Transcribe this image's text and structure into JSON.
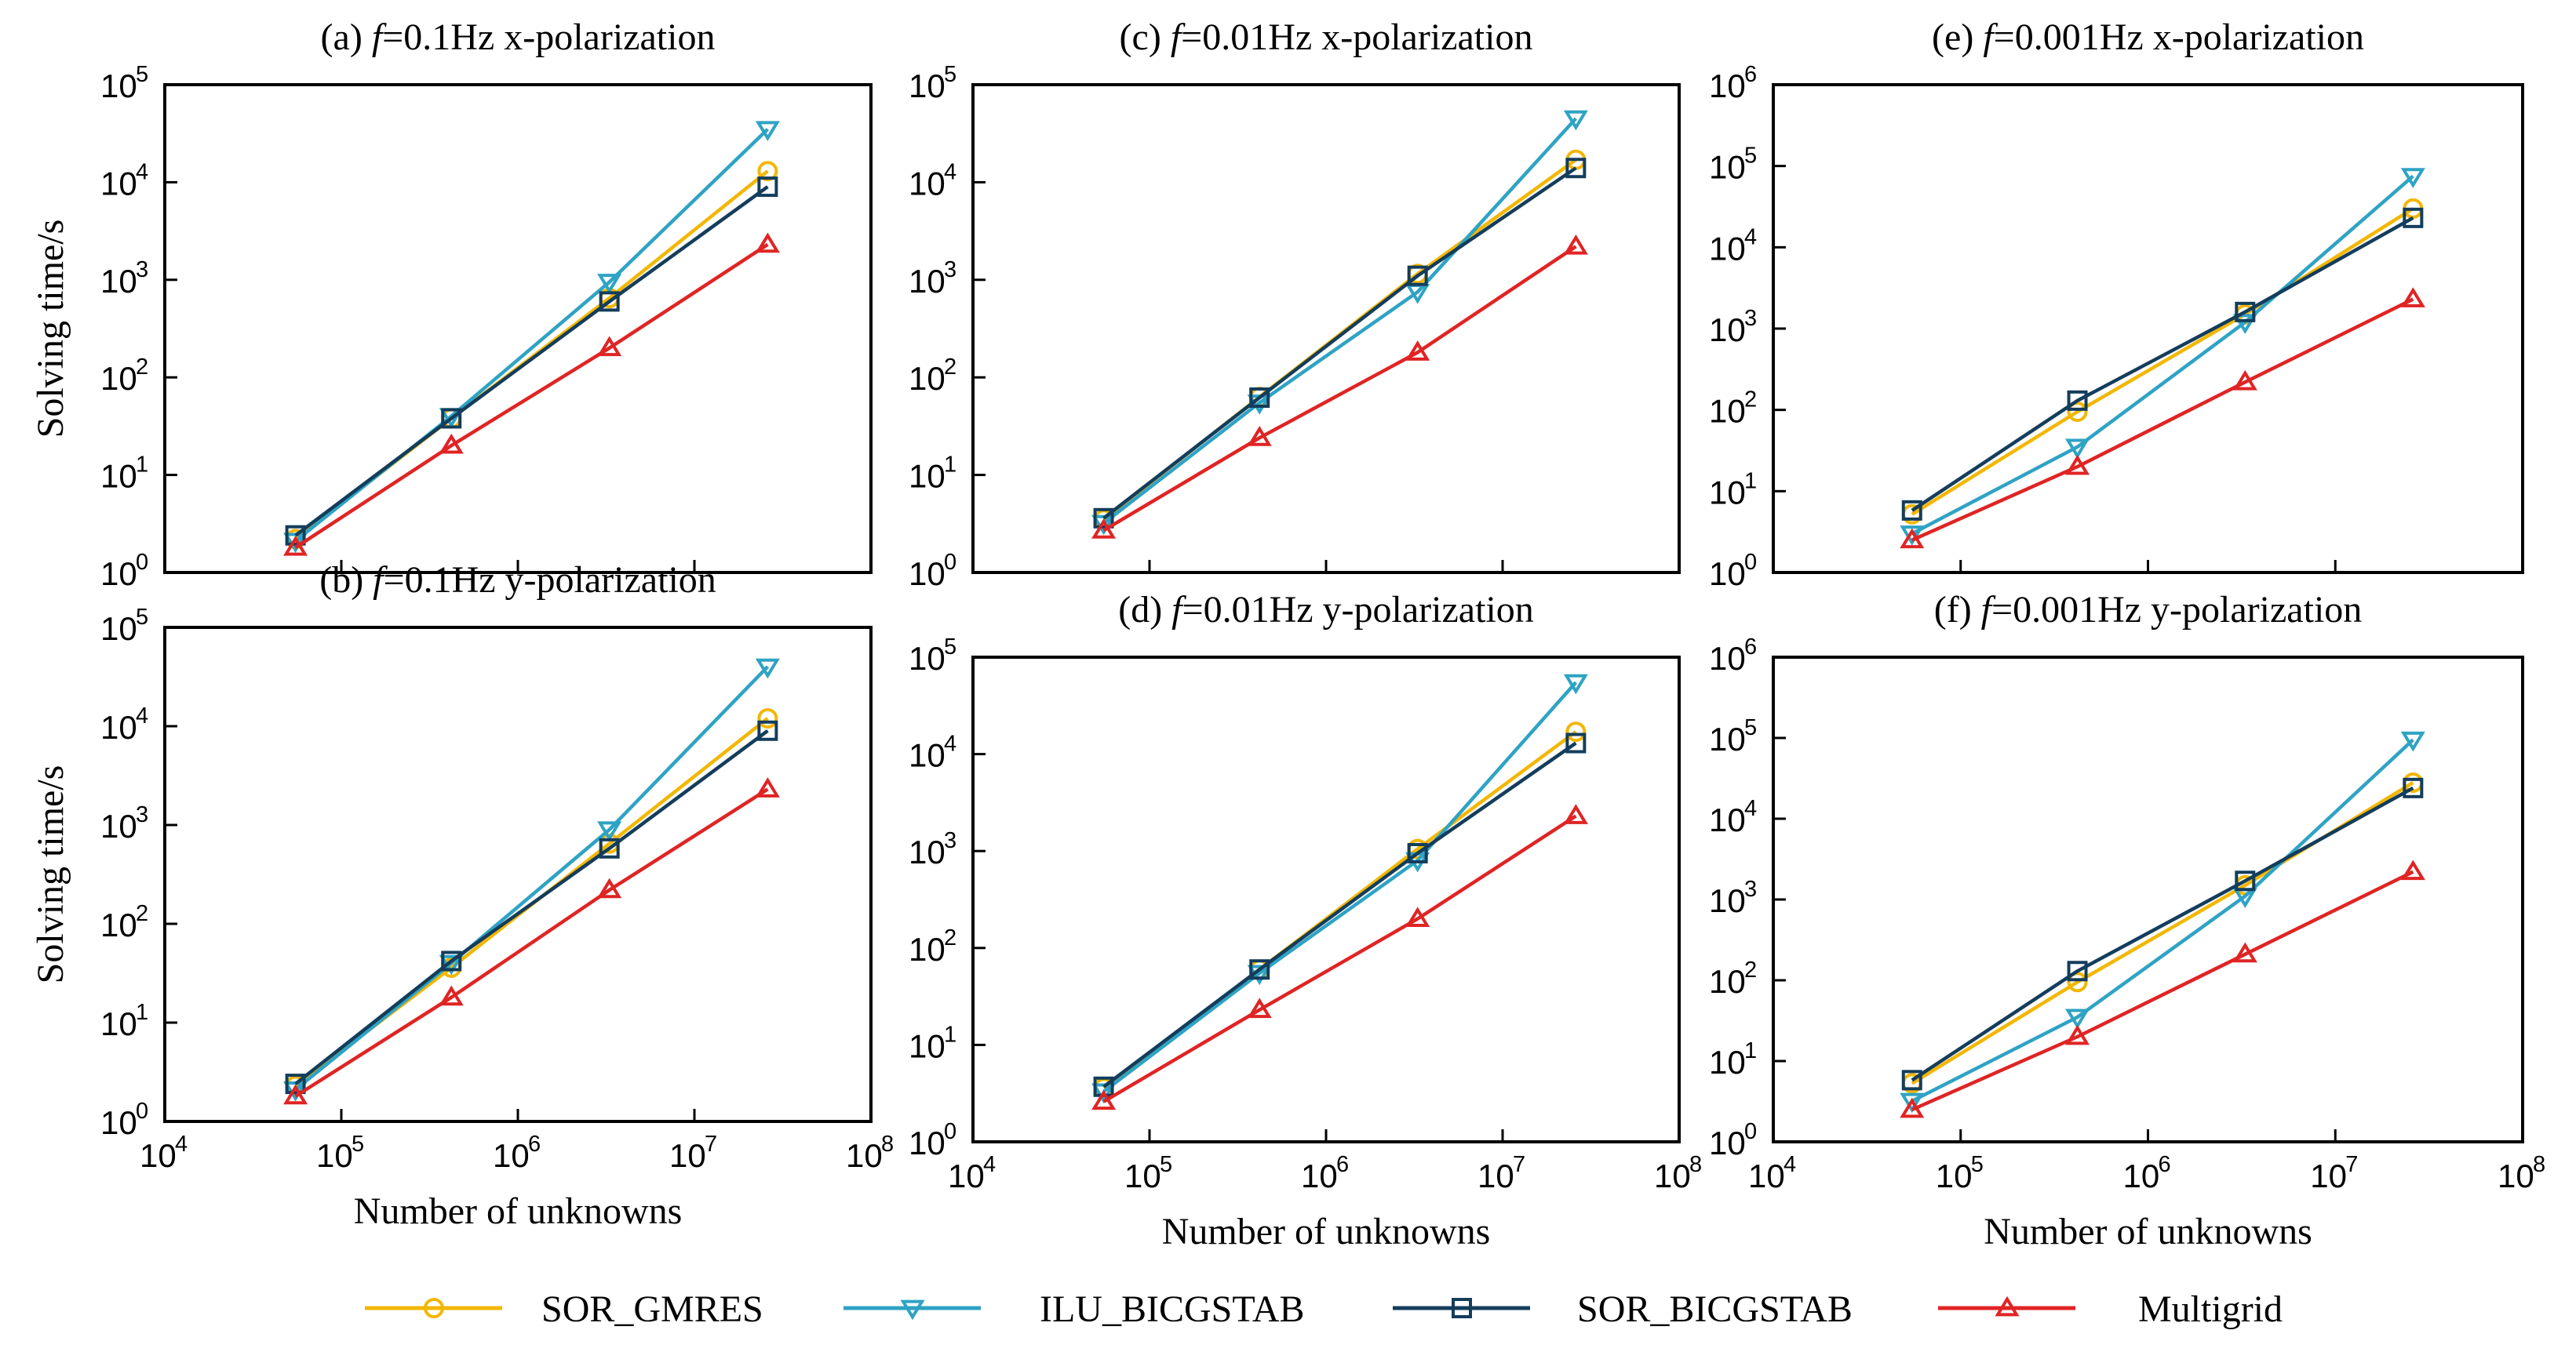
{
  "colors": {
    "SOR_GMRES": "#F2B705",
    "ILU_BICGSTAB": "#2FA3C4",
    "SOR_BICGSTAB": "#143D5C",
    "Multigrid": "#E02424"
  },
  "legend": {
    "placement": "bottom-center",
    "entries": [
      {
        "key": "SOR_GMRES",
        "label": "SOR_GMRES",
        "marker": "circle"
      },
      {
        "key": "ILU_BICGSTAB",
        "label": "ILU_BICGSTAB",
        "marker": "triangle-down"
      },
      {
        "key": "SOR_BICGSTAB",
        "label": "SOR_BICGSTAB",
        "marker": "square"
      },
      {
        "key": "Multigrid",
        "label": "Multigrid",
        "marker": "triangle-up"
      }
    ]
  },
  "chart_data": [
    {
      "id": "a",
      "type": "line",
      "title": {
        "prefix": "(a) ",
        "italic": "f",
        "rest": "=0.1Hz x-polarization"
      },
      "xlabel": "",
      "ylabel": "Solving time/s",
      "xscale": "log",
      "yscale": "log",
      "xlim_exp": [
        4,
        8
      ],
      "ylim_exp": [
        0,
        5
      ],
      "x_tick_labels_shown": false,
      "y_tick_labels_shown": true,
      "x": [
        55000,
        420000,
        3300000,
        26000000
      ],
      "series": [
        {
          "key": "SOR_GMRES",
          "name": "SOR_GMRES",
          "values": [
            2.2,
            38,
            650,
            13000
          ]
        },
        {
          "key": "ILU_BICGSTAB",
          "name": "ILU_BICGSTAB",
          "values": [
            2.1,
            40,
            950,
            35000
          ]
        },
        {
          "key": "SOR_BICGSTAB",
          "name": "SOR_BICGSTAB",
          "values": [
            2.4,
            38,
            600,
            9000
          ]
        },
        {
          "key": "Multigrid",
          "name": "Multigrid",
          "values": [
            1.8,
            20,
            200,
            2300
          ]
        }
      ]
    },
    {
      "id": "b",
      "type": "line",
      "title": {
        "prefix": "(b) ",
        "italic": "f",
        "rest": "=0.1Hz y-polarization"
      },
      "xlabel": "Number of unknowns",
      "ylabel": "Solving time/s",
      "xscale": "log",
      "yscale": "log",
      "xlim_exp": [
        4,
        8
      ],
      "ylim_exp": [
        0,
        5
      ],
      "x_tick_labels_shown": true,
      "y_tick_labels_shown": true,
      "x": [
        55000,
        420000,
        3300000,
        26000000
      ],
      "series": [
        {
          "key": "SOR_GMRES",
          "name": "SOR_GMRES",
          "values": [
            2.3,
            36,
            650,
            12000
          ]
        },
        {
          "key": "ILU_BICGSTAB",
          "name": "ILU_BICGSTAB",
          "values": [
            2.1,
            40,
            900,
            40000
          ]
        },
        {
          "key": "SOR_BICGSTAB",
          "name": "SOR_BICGSTAB",
          "values": [
            2.4,
            42,
            580,
            9000
          ]
        },
        {
          "key": "Multigrid",
          "name": "Multigrid",
          "values": [
            1.8,
            18,
            220,
            2300
          ]
        }
      ]
    },
    {
      "id": "c",
      "type": "line",
      "title": {
        "prefix": "(c) ",
        "italic": "f",
        "rest": "=0.01Hz x-polarization"
      },
      "xlabel": "",
      "ylabel": "",
      "xscale": "log",
      "yscale": "log",
      "xlim_exp": [
        4,
        8
      ],
      "ylim_exp": [
        0,
        5
      ],
      "x_tick_labels_shown": false,
      "y_tick_labels_shown": true,
      "x": [
        55000,
        420000,
        3300000,
        26000000
      ],
      "series": [
        {
          "key": "SOR_GMRES",
          "name": "SOR_GMRES",
          "values": [
            3.5,
            63,
            1150,
            17000
          ]
        },
        {
          "key": "ILU_BICGSTAB",
          "name": "ILU_BICGSTAB",
          "values": [
            3.2,
            55,
            750,
            45000
          ]
        },
        {
          "key": "SOR_BICGSTAB",
          "name": "SOR_BICGSTAB",
          "values": [
            3.6,
            62,
            1100,
            14000
          ]
        },
        {
          "key": "Multigrid",
          "name": "Multigrid",
          "values": [
            2.7,
            24,
            180,
            2200
          ]
        }
      ]
    },
    {
      "id": "d",
      "type": "line",
      "title": {
        "prefix": "(d) ",
        "italic": "f",
        "rest": "=0.01Hz y-polarization"
      },
      "xlabel": "Number of unknowns",
      "ylabel": "",
      "xscale": "log",
      "yscale": "log",
      "xlim_exp": [
        4,
        8
      ],
      "ylim_exp": [
        0,
        5
      ],
      "x_tick_labels_shown": true,
      "y_tick_labels_shown": true,
      "x": [
        55000,
        420000,
        3300000,
        26000000
      ],
      "series": [
        {
          "key": "SOR_GMRES",
          "name": "SOR_GMRES",
          "values": [
            3.6,
            60,
            1050,
            17000
          ]
        },
        {
          "key": "ILU_BICGSTAB",
          "name": "ILU_BICGSTAB",
          "values": [
            3.3,
            55,
            800,
            55000
          ]
        },
        {
          "key": "SOR_BICGSTAB",
          "name": "SOR_BICGSTAB",
          "values": [
            3.7,
            60,
            950,
            13000
          ]
        },
        {
          "key": "Multigrid",
          "name": "Multigrid",
          "values": [
            2.6,
            23,
            200,
            2300
          ]
        }
      ]
    },
    {
      "id": "e",
      "type": "line",
      "title": {
        "prefix": "(e) ",
        "italic": "f",
        "rest": "=0.001Hz x-polarization"
      },
      "xlabel": "",
      "ylabel": "",
      "xscale": "log",
      "yscale": "log",
      "xlim_exp": [
        4,
        8
      ],
      "ylim_exp": [
        0,
        6
      ],
      "x_tick_labels_shown": false,
      "y_tick_labels_shown": true,
      "x": [
        55000,
        420000,
        3300000,
        26000000
      ],
      "series": [
        {
          "key": "SOR_GMRES",
          "name": "SOR_GMRES",
          "values": [
            5.2,
            95,
            1500,
            30000
          ]
        },
        {
          "key": "ILU_BICGSTAB",
          "name": "ILU_BICGSTAB",
          "values": [
            3.0,
            35,
            1200,
            75000
          ]
        },
        {
          "key": "SOR_BICGSTAB",
          "name": "SOR_BICGSTAB",
          "values": [
            5.8,
            130,
            1600,
            23000
          ]
        },
        {
          "key": "Multigrid",
          "name": "Multigrid",
          "values": [
            2.5,
            20,
            220,
            2300
          ]
        }
      ]
    },
    {
      "id": "f",
      "type": "line",
      "title": {
        "prefix": "(f) ",
        "italic": "f",
        "rest": "=0.001Hz y-polarization"
      },
      "xlabel": "Number of unknowns",
      "ylabel": "",
      "xscale": "log",
      "yscale": "log",
      "xlim_exp": [
        4,
        8
      ],
      "ylim_exp": [
        0,
        6
      ],
      "x_tick_labels_shown": true,
      "y_tick_labels_shown": true,
      "x": [
        55000,
        420000,
        3300000,
        26000000
      ],
      "series": [
        {
          "key": "SOR_GMRES",
          "name": "SOR_GMRES",
          "values": [
            5.3,
            95,
            1500,
            28000
          ]
        },
        {
          "key": "ILU_BICGSTAB",
          "name": "ILU_BICGSTAB",
          "values": [
            3.2,
            35,
            1100,
            95000
          ]
        },
        {
          "key": "SOR_BICGSTAB",
          "name": "SOR_BICGSTAB",
          "values": [
            5.8,
            130,
            1700,
            24000
          ]
        },
        {
          "key": "Multigrid",
          "name": "Multigrid",
          "values": [
            2.5,
            20,
            210,
            2200
          ]
        }
      ]
    }
  ]
}
